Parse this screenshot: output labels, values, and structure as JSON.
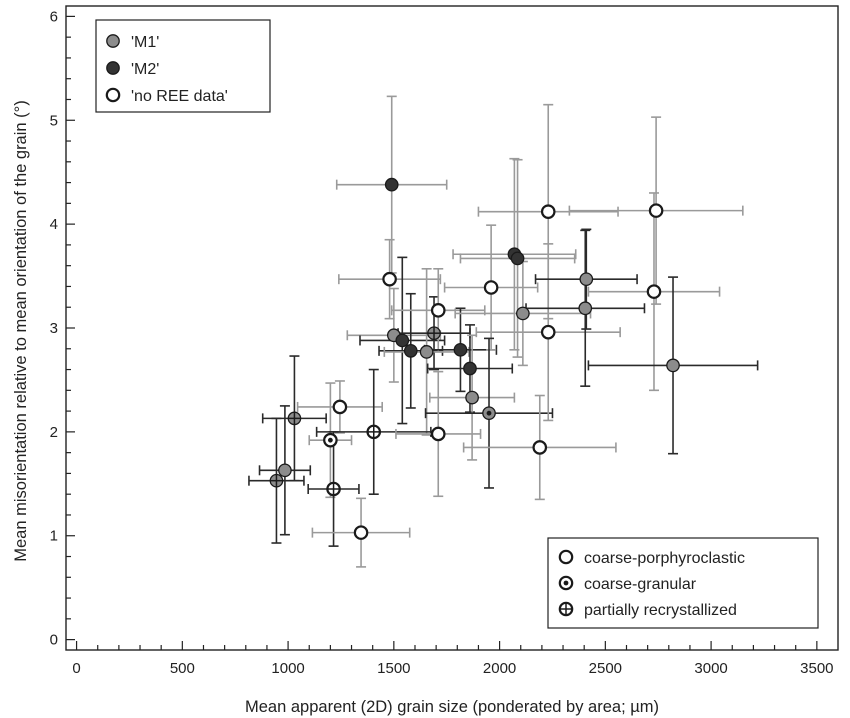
{
  "chart_data": {
    "type": "scatter",
    "xlabel": "Mean apparent (2D) grain size (ponderated by area; µm)",
    "ylabel": "Mean misorientation relative to mean orientation of the grain (°)",
    "xlim": [
      -50,
      3600
    ],
    "ylim": [
      -0.1,
      6.1
    ],
    "x_ticks": [
      0,
      500,
      1000,
      1500,
      2000,
      2500,
      3000,
      3500
    ],
    "x_tick_labels": [
      "0",
      "500",
      "1000",
      "1500",
      "2000",
      "2500",
      "3000",
      "3500"
    ],
    "y_ticks": [
      0,
      1,
      2,
      3,
      4,
      5,
      6
    ],
    "y_tick_labels": [
      "0",
      "1",
      "2",
      "3",
      "4",
      "5",
      "6"
    ],
    "grid": false,
    "colors": {
      "M1": "#8c8c8c",
      "M2": "#333333",
      "none": "#ffffff",
      "bar_light": "#9a9a9a",
      "bar_dark": "#2a2a2a"
    },
    "legend_fill": {
      "placement": "top-left",
      "entries": [
        {
          "key": "M1",
          "label": "'M1'"
        },
        {
          "key": "M2",
          "label": "'M2'"
        },
        {
          "key": "none",
          "label": "'no REE data'"
        }
      ]
    },
    "legend_texture": {
      "placement": "bottom-right",
      "entries": [
        {
          "key": "coarse-porphyroclastic",
          "label": "coarse-porphyroclastic"
        },
        {
          "key": "coarse-granular",
          "label": "coarse-granular"
        },
        {
          "key": "partially recrystallized",
          "label": "partially recrystallized"
        }
      ]
    },
    "points": [
      {
        "x": 1490,
        "y": 4.38,
        "xerr": 260,
        "yerr": 0.85,
        "fill": "M2",
        "texture": "coarse-porphyroclastic",
        "bar": "light"
      },
      {
        "x": 1480,
        "y": 3.47,
        "xerr": 240,
        "yerr": 0.38,
        "fill": "none",
        "texture": "coarse-porphyroclastic",
        "bar": "light"
      },
      {
        "x": 1500,
        "y": 2.93,
        "xerr": 220,
        "yerr": 0.45,
        "fill": "M1",
        "texture": "coarse-porphyroclastic",
        "bar": "light"
      },
      {
        "x": 1540,
        "y": 2.88,
        "xerr": 200,
        "yerr": 0.8,
        "fill": "M2",
        "texture": "coarse-porphyroclastic",
        "bar": "dark"
      },
      {
        "x": 1580,
        "y": 2.78,
        "xerr": 150,
        "yerr": 0.55,
        "fill": "M2",
        "texture": "coarse-porphyroclastic",
        "bar": "dark"
      },
      {
        "x": 1655,
        "y": 2.77,
        "xerr": 200,
        "yerr": 0.8,
        "fill": "M1",
        "texture": "coarse-porphyroclastic",
        "bar": "light"
      },
      {
        "x": 1690,
        "y": 2.95,
        "xerr": 170,
        "yerr": 0.35,
        "fill": "M1",
        "texture": "partially recrystallized",
        "bar": "dark"
      },
      {
        "x": 1710,
        "y": 3.17,
        "xerr": 220,
        "yerr": 0.4,
        "fill": "none",
        "texture": "coarse-porphyroclastic",
        "bar": "light"
      },
      {
        "x": 1815,
        "y": 2.79,
        "xerr": 170,
        "yerr": 0.4,
        "fill": "M2",
        "texture": "coarse-porphyroclastic",
        "bar": "dark"
      },
      {
        "x": 1860,
        "y": 2.61,
        "xerr": 200,
        "yerr": 0.42,
        "fill": "M2",
        "texture": "coarse-porphyroclastic",
        "bar": "dark"
      },
      {
        "x": 1870,
        "y": 2.33,
        "xerr": 200,
        "yerr": 0.6,
        "fill": "M1",
        "texture": "coarse-porphyroclastic",
        "bar": "light"
      },
      {
        "x": 1960,
        "y": 3.39,
        "xerr": 220,
        "yerr": 0.6,
        "fill": "none",
        "texture": "coarse-porphyroclastic",
        "bar": "light"
      },
      {
        "x": 1950,
        "y": 2.18,
        "xerr": 300,
        "yerr": 0.72,
        "fill": "M1",
        "texture": "coarse-granular",
        "bar": "dark"
      },
      {
        "x": 2070,
        "y": 3.71,
        "xerr": 290,
        "yerr": 0.92,
        "fill": "M2",
        "texture": "coarse-porphyroclastic",
        "bar": "light"
      },
      {
        "x": 2085,
        "y": 3.67,
        "xerr": 270,
        "yerr": 0.95,
        "fill": "M2",
        "texture": "coarse-porphyroclastic",
        "bar": "light"
      },
      {
        "x": 2110,
        "y": 3.14,
        "xerr": 320,
        "yerr": 0.5,
        "fill": "M1",
        "texture": "coarse-porphyroclastic",
        "bar": "light"
      },
      {
        "x": 2230,
        "y": 4.12,
        "xerr": 330,
        "yerr": 1.03,
        "fill": "none",
        "texture": "coarse-porphyroclastic",
        "bar": "light"
      },
      {
        "x": 2230,
        "y": 2.96,
        "xerr": 340,
        "yerr": 0.85,
        "fill": "none",
        "texture": "coarse-porphyroclastic",
        "bar": "light"
      },
      {
        "x": 2410,
        "y": 3.47,
        "xerr": 240,
        "yerr": 0.48,
        "fill": "M1",
        "texture": "coarse-porphyroclastic",
        "bar": "dark"
      },
      {
        "x": 2405,
        "y": 3.19,
        "xerr": 280,
        "yerr": 0.75,
        "fill": "M1",
        "texture": "coarse-porphyroclastic",
        "bar": "dark"
      },
      {
        "x": 2740,
        "y": 4.13,
        "xerr": 410,
        "yerr": 0.9,
        "fill": "none",
        "texture": "coarse-porphyroclastic",
        "bar": "light"
      },
      {
        "x": 2730,
        "y": 3.35,
        "xerr": 310,
        "yerr": 0.95,
        "fill": "none",
        "texture": "coarse-porphyroclastic",
        "bar": "light"
      },
      {
        "x": 2820,
        "y": 2.64,
        "xerr": 400,
        "yerr": 0.85,
        "fill": "M1",
        "texture": "coarse-porphyroclastic",
        "bar": "dark"
      },
      {
        "x": 1245,
        "y": 2.24,
        "xerr": 200,
        "yerr": 0.25,
        "fill": "none",
        "texture": "coarse-porphyroclastic",
        "bar": "light"
      },
      {
        "x": 1030,
        "y": 2.13,
        "xerr": 150,
        "yerr": 0.6,
        "fill": "M1",
        "texture": "partially recrystallized",
        "bar": "dark"
      },
      {
        "x": 985,
        "y": 1.63,
        "xerr": 120,
        "yerr": 0.62,
        "fill": "M1",
        "texture": "coarse-porphyroclastic",
        "bar": "dark"
      },
      {
        "x": 945,
        "y": 1.53,
        "xerr": 130,
        "yerr": 0.6,
        "fill": "M1",
        "texture": "partially recrystallized",
        "bar": "dark"
      },
      {
        "x": 1200,
        "y": 1.92,
        "xerr": 100,
        "yerr": 0.55,
        "fill": "none",
        "texture": "coarse-granular",
        "bar": "light"
      },
      {
        "x": 1405,
        "y": 2.0,
        "xerr": 270,
        "yerr": 0.6,
        "fill": "none",
        "texture": "partially recrystallized",
        "bar": "dark"
      },
      {
        "x": 1215,
        "y": 1.45,
        "xerr": 120,
        "yerr": 0.55,
        "fill": "none",
        "texture": "partially recrystallized",
        "bar": "dark"
      },
      {
        "x": 1710,
        "y": 1.98,
        "xerr": 200,
        "yerr": 0.6,
        "fill": "none",
        "texture": "coarse-porphyroclastic",
        "bar": "light"
      },
      {
        "x": 2190,
        "y": 1.85,
        "xerr": 360,
        "yerr": 0.5,
        "fill": "none",
        "texture": "coarse-porphyroclastic",
        "bar": "light"
      },
      {
        "x": 1345,
        "y": 1.03,
        "xerr": 230,
        "yerr": 0.33,
        "fill": "none",
        "texture": "coarse-porphyroclastic",
        "bar": "light"
      }
    ]
  }
}
